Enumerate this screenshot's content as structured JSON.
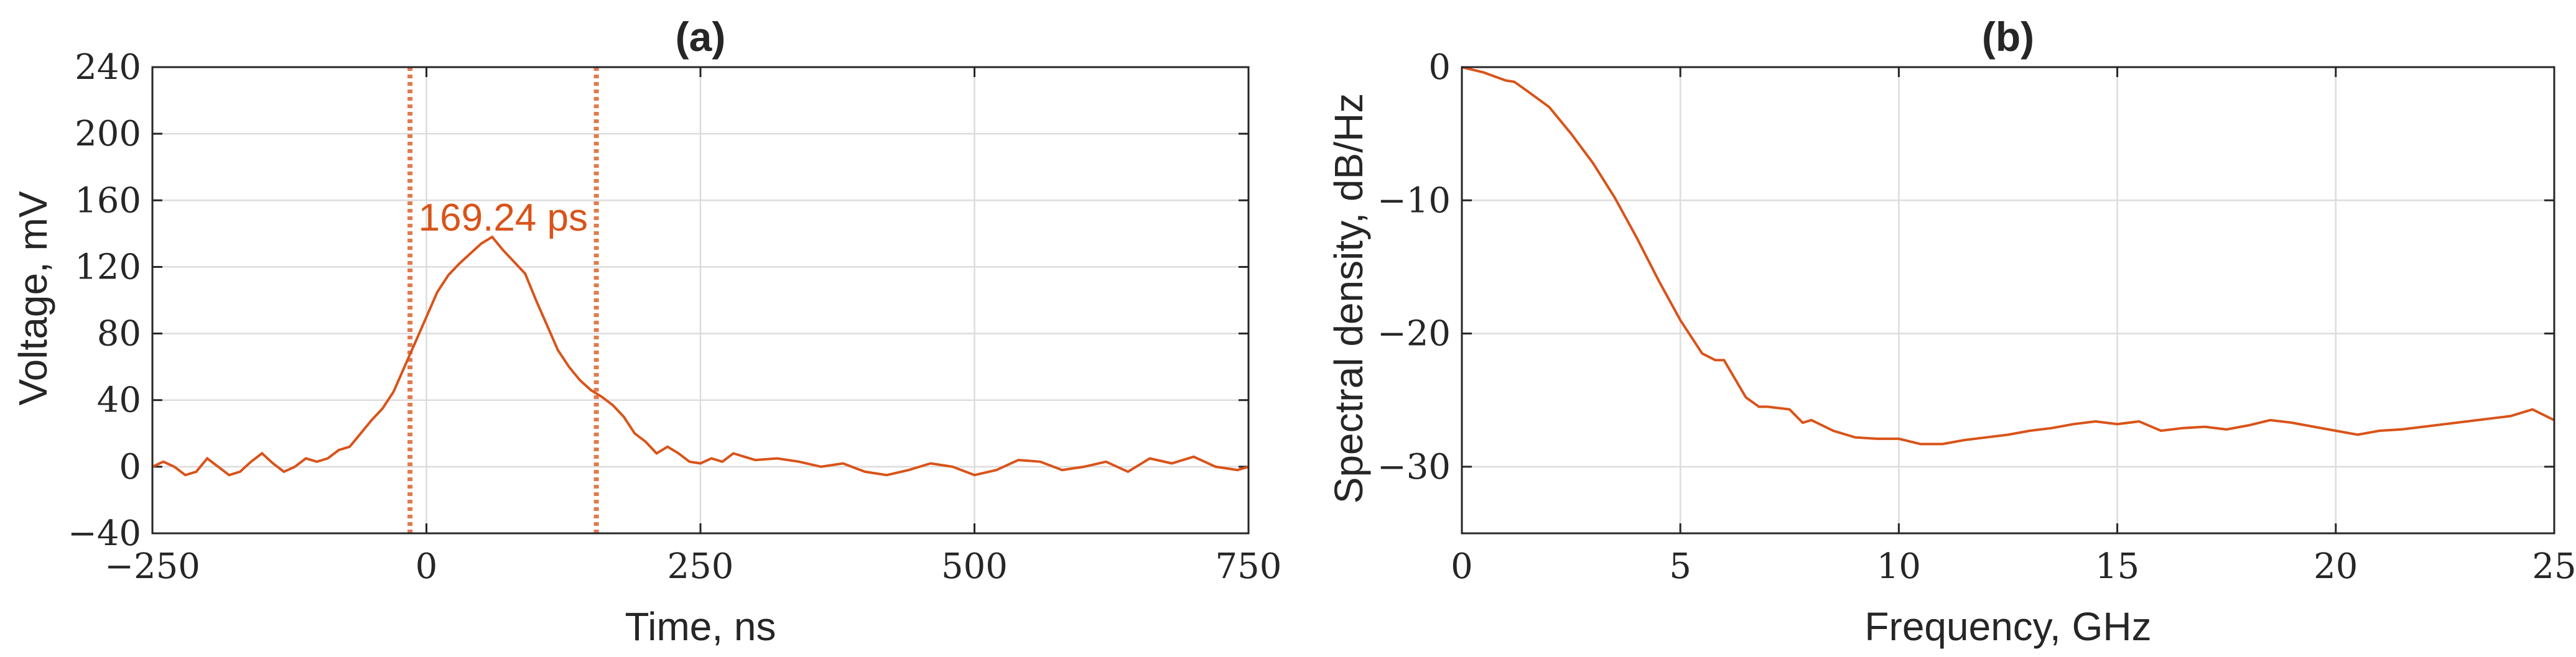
{
  "colors": {
    "series": "#d95319",
    "marker": "#e07a4f",
    "grid": "#dcdcdc",
    "axis": "#262626"
  },
  "chart_data": [
    {
      "type": "line",
      "panel": "(a)",
      "title": "(a)",
      "xlabel": "Time, ns",
      "ylabel": "Voltage, mV",
      "xlim": [
        -250,
        750
      ],
      "ylim": [
        -40,
        240
      ],
      "xticks": [
        -250,
        0,
        250,
        500,
        750
      ],
      "xtick_labels": [
        "−250",
        "0",
        "250",
        "500",
        "750"
      ],
      "yticks": [
        -40,
        0,
        40,
        80,
        120,
        160,
        200,
        240
      ],
      "ytick_labels": [
        "−40",
        "0",
        "40",
        "80",
        "120",
        "160",
        "200",
        "240"
      ],
      "grid": true,
      "series": [
        {
          "x": [
            -250,
            -240,
            -230,
            -220,
            -210,
            -200,
            -190,
            -180,
            -170,
            -160,
            -150,
            -140,
            -130,
            -120,
            -110,
            -100,
            -90,
            -80,
            -70,
            -60,
            -50,
            -40,
            -30,
            -20,
            -10,
            0,
            10,
            20,
            30,
            40,
            50,
            60,
            70,
            80,
            90,
            100,
            110,
            120,
            130,
            140,
            150,
            160,
            170,
            180,
            190,
            200,
            210,
            220,
            230,
            240,
            250,
            260,
            270,
            280,
            290,
            300,
            320,
            340,
            360,
            380,
            400,
            420,
            440,
            460,
            480,
            500,
            520,
            540,
            560,
            580,
            600,
            620,
            640,
            660,
            680,
            700,
            720,
            740,
            750
          ],
          "y": [
            0,
            3,
            0,
            -5,
            -3,
            5,
            0,
            -5,
            -3,
            3,
            8,
            2,
            -3,
            0,
            5,
            3,
            5,
            10,
            12,
            20,
            28,
            35,
            45,
            60,
            75,
            90,
            105,
            115,
            122,
            128,
            134,
            138,
            130,
            123,
            116,
            100,
            85,
            70,
            60,
            52,
            46,
            42,
            37,
            30,
            20,
            15,
            8,
            12,
            8,
            3,
            2,
            5,
            3,
            8,
            6,
            4,
            5,
            3,
            0,
            2,
            -3,
            -5,
            -2,
            2,
            0,
            -5,
            -2,
            4,
            3,
            -2,
            0,
            3,
            -3,
            5,
            2,
            6,
            0,
            -2,
            0
          ]
        }
      ],
      "markers": [
        {
          "x": -15,
          "style": "dotted"
        },
        {
          "x": 155,
          "style": "dotted"
        }
      ],
      "annotation": {
        "text": "169.24 ps",
        "x": 70,
        "y": 150
      }
    },
    {
      "type": "line",
      "panel": "(b)",
      "title": "(b)",
      "xlabel": "Frequency, GHz",
      "ylabel": "Spectral density, dB/Hz",
      "xlim": [
        0,
        25
      ],
      "ylim": [
        -35,
        0
      ],
      "xticks": [
        0,
        5,
        10,
        15,
        20,
        25
      ],
      "xtick_labels": [
        "0",
        "5",
        "10",
        "15",
        "20",
        "25"
      ],
      "yticks": [
        -30,
        -20,
        -10,
        0
      ],
      "ytick_labels": [
        "−30",
        "−20",
        "−10",
        "0"
      ],
      "grid": true,
      "series": [
        {
          "x": [
            0,
            0.5,
            1,
            1.2,
            1.5,
            2,
            2.5,
            3,
            3.5,
            4,
            4.5,
            5,
            5.5,
            5.8,
            6,
            6.5,
            6.8,
            7,
            7.5,
            7.8,
            8,
            8.5,
            9,
            9.5,
            10,
            10.5,
            11,
            11.5,
            12,
            12.5,
            13,
            13.5,
            14,
            14.5,
            15,
            15.5,
            16,
            16.5,
            17,
            17.5,
            18,
            18.5,
            19,
            19.5,
            20,
            20.5,
            21,
            21.5,
            22,
            22.5,
            23,
            23.5,
            24,
            24.5,
            25
          ],
          "y": [
            0,
            -0.4,
            -1,
            -1.1,
            -1.8,
            -3,
            -5,
            -7.2,
            -9.8,
            -12.8,
            -16,
            -19,
            -21.5,
            -22,
            -22,
            -24.8,
            -25.5,
            -25.5,
            -25.7,
            -26.7,
            -26.5,
            -27.3,
            -27.8,
            -27.9,
            -27.9,
            -28.3,
            -28.3,
            -28,
            -27.8,
            -27.6,
            -27.3,
            -27.1,
            -26.8,
            -26.6,
            -26.8,
            -26.6,
            -27.3,
            -27.1,
            -27,
            -27.2,
            -26.9,
            -26.5,
            -26.7,
            -27,
            -27.3,
            -27.6,
            -27.3,
            -27.2,
            -27,
            -26.8,
            -26.6,
            -26.4,
            -26.2,
            -25.7,
            -26.5
          ]
        }
      ]
    }
  ]
}
